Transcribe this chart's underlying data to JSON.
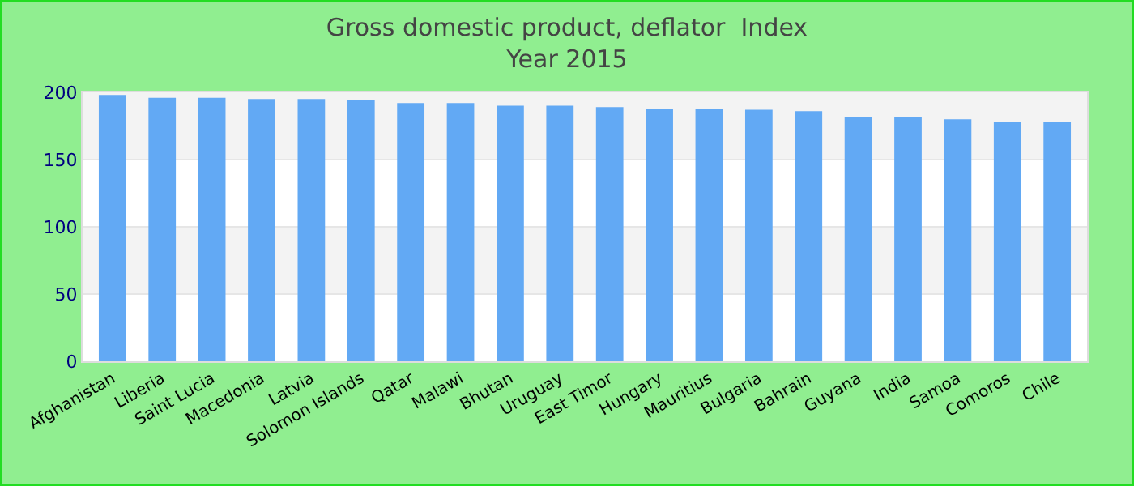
{
  "chart_data": {
    "type": "bar",
    "title": "Gross domestic product, deflator  Index",
    "subtitle": "Year 2015",
    "categories": [
      "Afghanistan",
      "Liberia",
      "Saint Lucia",
      "Macedonia",
      "Latvia",
      "Solomon Islands",
      "Qatar",
      "Malawi",
      "Bhutan",
      "Uruguay",
      "East Timor",
      "Hungary",
      "Mauritius",
      "Bulgaria",
      "Bahrain",
      "Guyana",
      "India",
      "Samoa",
      "Comoros",
      "Chile"
    ],
    "values": [
      198,
      196,
      196,
      195,
      195,
      194,
      192,
      192,
      190,
      190,
      189,
      188,
      188,
      187,
      186,
      182,
      182,
      180,
      178,
      178
    ],
    "color": "#62a9f4",
    "ylim": [
      0,
      200
    ],
    "yticks": [
      0,
      50,
      100,
      150,
      200
    ],
    "grid": "y"
  }
}
